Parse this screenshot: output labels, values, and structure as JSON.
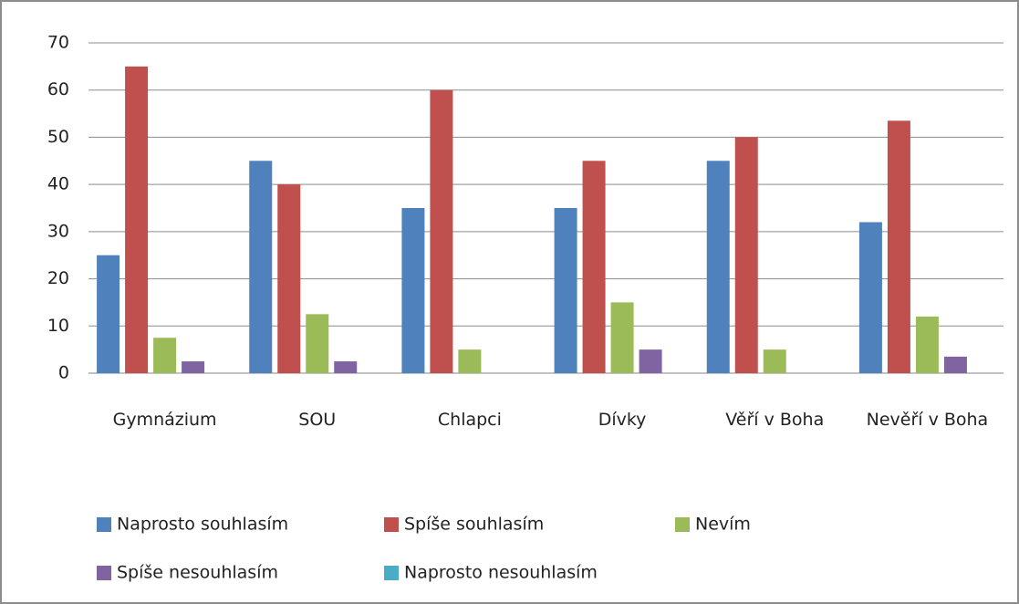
{
  "chart_data": {
    "type": "bar",
    "categories": [
      "Gymnázium",
      "SOU",
      "Chlapci",
      "Dívky",
      "Věří v Boha",
      "Nevěří v Boha"
    ],
    "series": [
      {
        "name": "Naprosto souhlasím",
        "color": "#4f81bd",
        "values": [
          25,
          45,
          35,
          35,
          45,
          32
        ]
      },
      {
        "name": "Spíše souhlasím",
        "color": "#c0504d",
        "values": [
          65,
          40,
          60,
          45,
          50,
          53.5
        ]
      },
      {
        "name": "Nevím",
        "color": "#9bbb59",
        "values": [
          7.5,
          12.5,
          5,
          15,
          5,
          12
        ]
      },
      {
        "name": "Spíše nesouhlasím",
        "color": "#8064a2",
        "values": [
          2.5,
          2.5,
          0,
          5,
          0,
          3.5
        ]
      },
      {
        "name": "Naprosto nesouhlasím",
        "color": "#4bacc6",
        "values": [
          0,
          0,
          0,
          0,
          0,
          0
        ]
      }
    ],
    "ylim": [
      0,
      70
    ],
    "yticks": [
      0,
      10,
      20,
      30,
      40,
      50,
      60,
      70
    ],
    "grid": true,
    "legend": "bottom"
  }
}
